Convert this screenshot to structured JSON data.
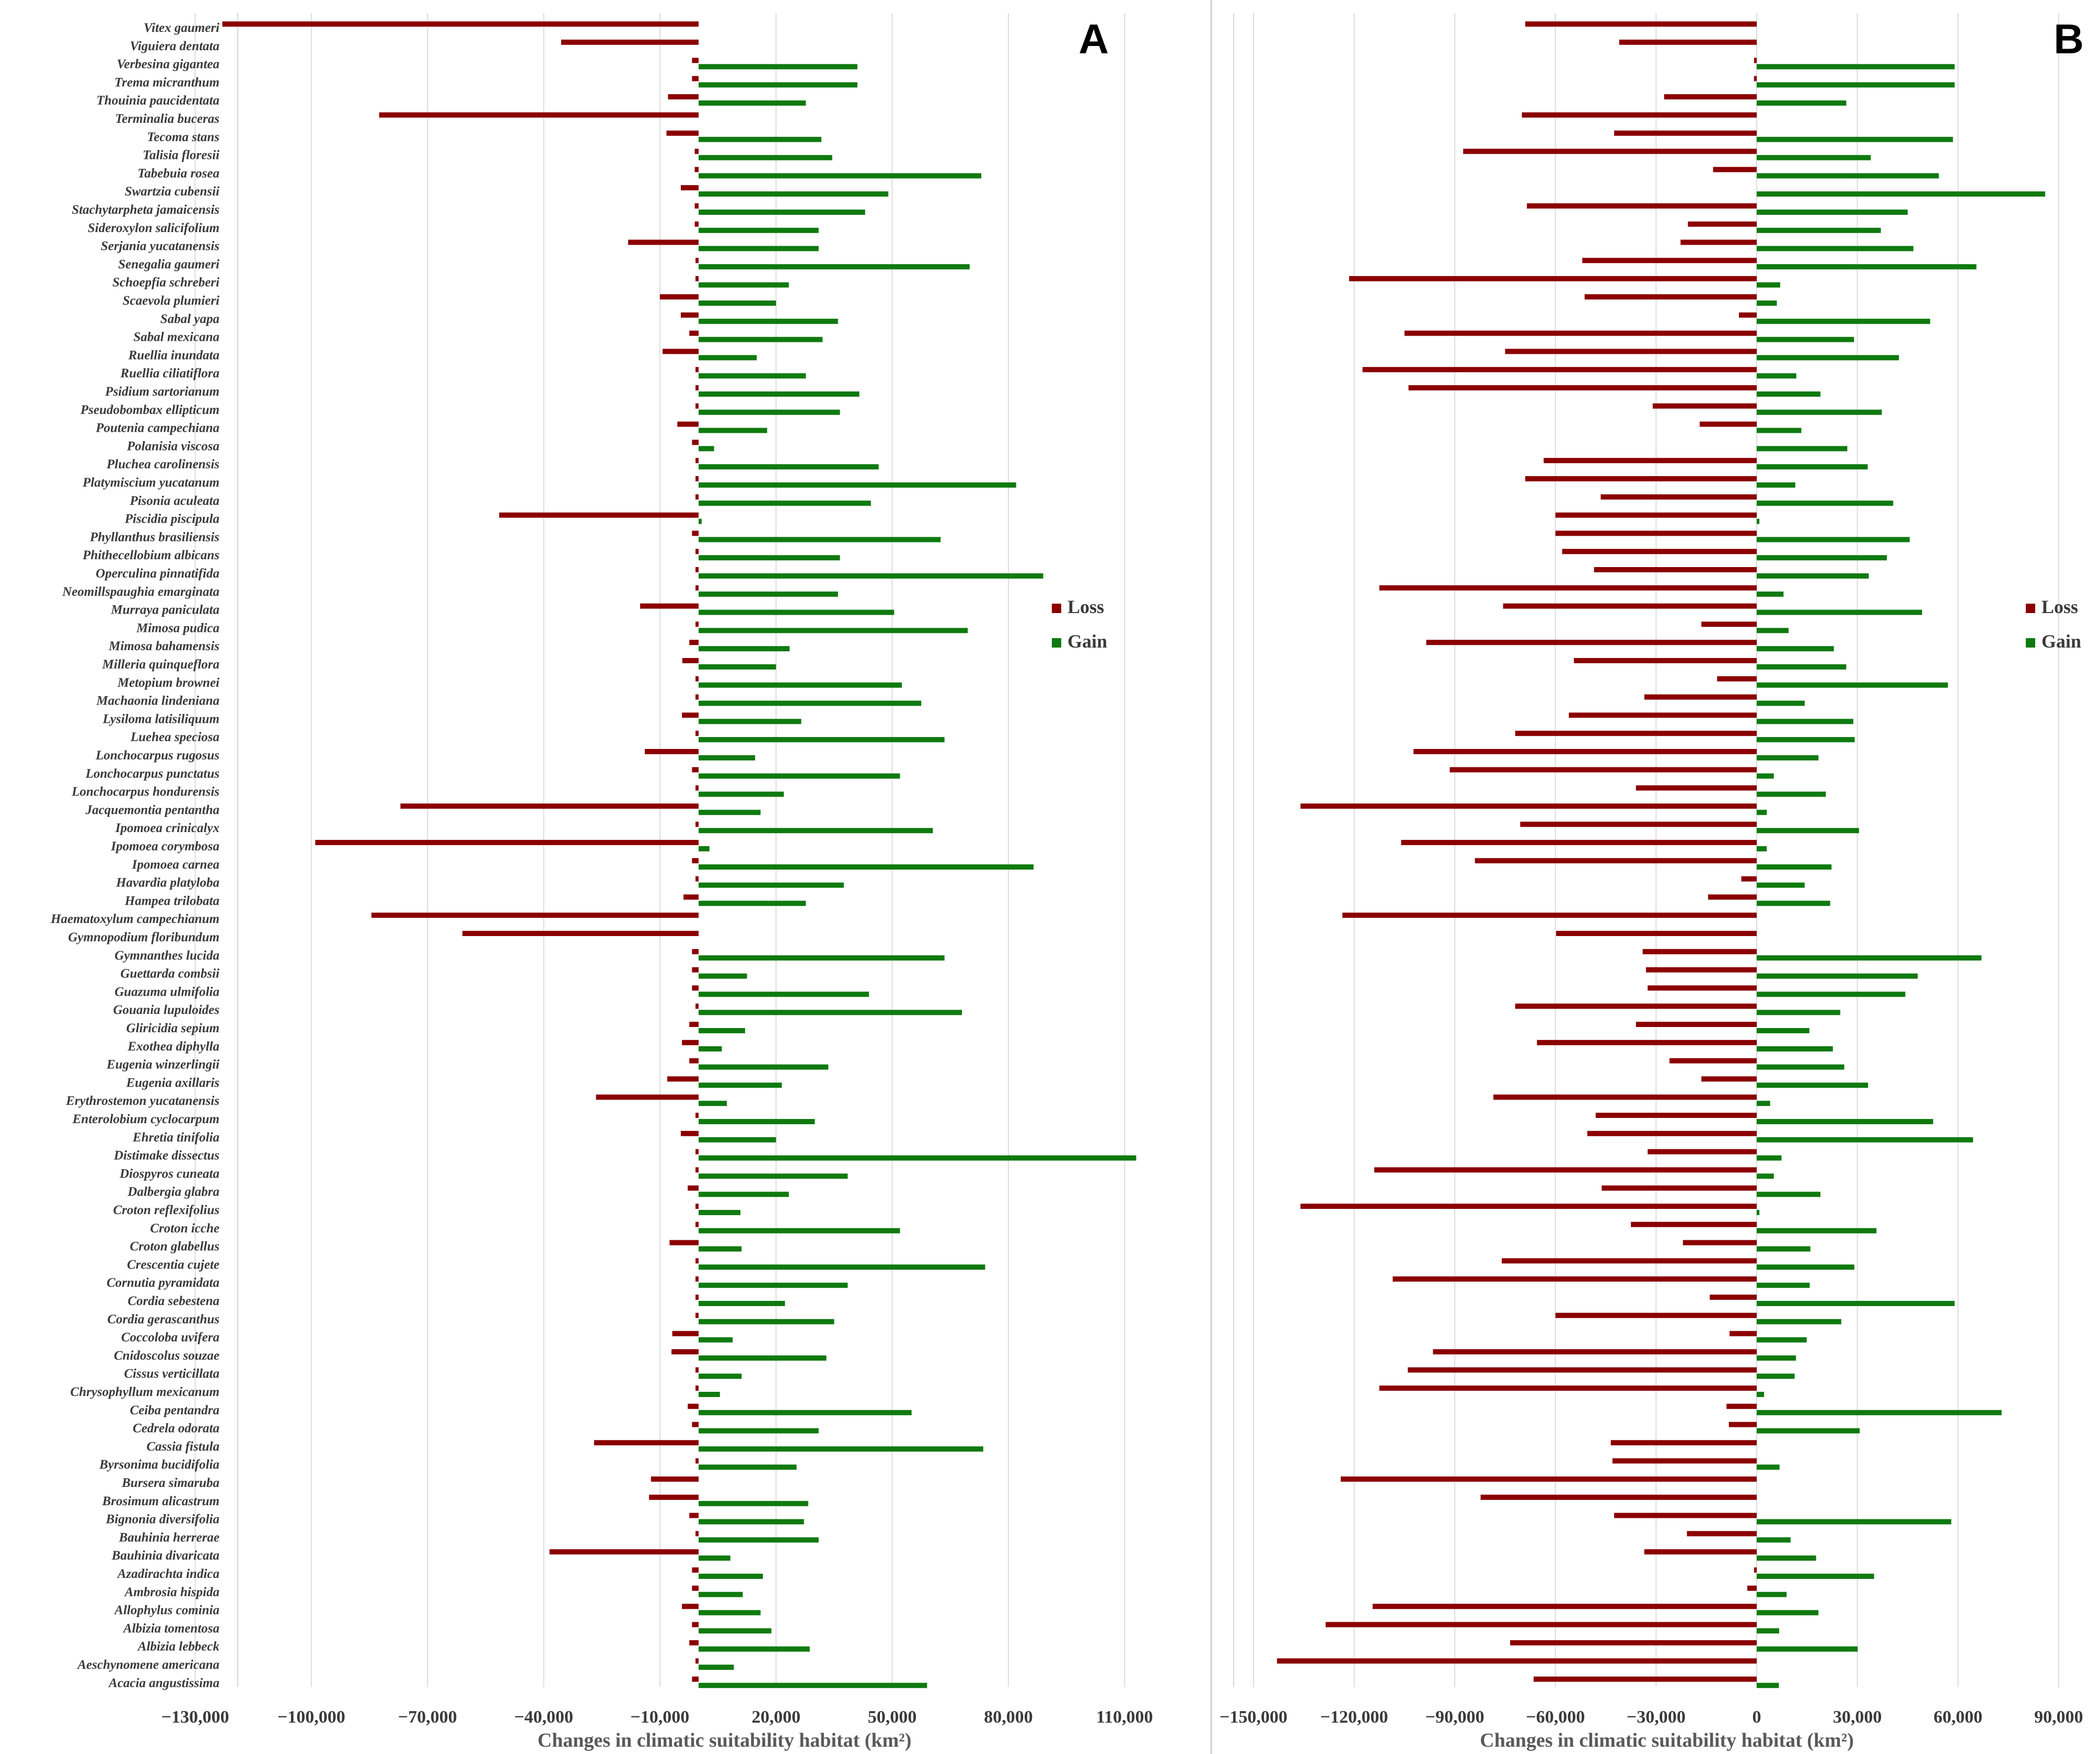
{
  "chart_data": [
    {
      "type": "bar",
      "panel_label": "A",
      "orientation": "horizontal",
      "xlabel": "Changes in climatic suitability habitat (km²)",
      "xlim": [
        -145000,
        125000
      ],
      "xticks": [
        -130000,
        -100000,
        -70000,
        -40000,
        -10000,
        20000,
        50000,
        80000,
        110000
      ],
      "xtick_labels": [
        "−130,000",
        "−100,000",
        "−70,000",
        "−40,000",
        "−10,000",
        "20,000",
        "50,000",
        "80,000",
        "110,000"
      ],
      "grid": "vertical",
      "legend": {
        "position": "right",
        "entries": [
          "Loss",
          "Gain"
        ]
      },
      "colors": {
        "Loss": "#8b0000",
        "Gain": "#0f7a0f"
      },
      "categories": [
        "Vitex gaumeri",
        "Viguiera dentata",
        "Verbesina gigantea",
        "Trema micranthum",
        "Thouinia paucidentata",
        "Terminalia buceras",
        "Tecoma stans",
        "Talisia floresii",
        "Tabebuia rosea",
        "Swartzia cubensii",
        "Stachytarpheta jamaicensis",
        "Sideroxylon salicifolium",
        "Serjania yucatanensis",
        "Senegalia gaumeri",
        "Schoepfia schreberi",
        "Scaevola plumieri",
        "Sabal yapa",
        "Sabal mexicana",
        "Ruellia inundata",
        "Ruellia ciliatiflora",
        "Psidium sartorianum",
        "Pseudobombax ellipticum",
        "Poutenia campechiana",
        "Polanisia viscosa",
        "Pluchea carolinensis",
        "Platymiscium yucatanum",
        "Pisonia aculeata",
        "Piscidia piscipula",
        "Phyllanthus brasiliensis",
        "Phithecellobium albicans",
        "Operculina pinnatifida",
        "Neomillspaughia emarginata",
        "Murraya paniculata",
        "Mimosa pudica",
        "Mimosa bahamensis",
        "Milleria quinqueflora",
        "Metopium brownei",
        "Machaonia lindeniana",
        "Lysiloma latisiliquum",
        "Luehea speciosa",
        "Lonchocarpus rugosus",
        "Lonchocarpus punctatus",
        "Lonchocarpus hondurensis",
        "Jacquemontia pentantha",
        "Ipomoea crinicalyx",
        "Ipomoea corymbosa",
        "Ipomoea carnea",
        "Havardia platyloba",
        "Hampea trilobata",
        "Haematoxylum campechianum",
        "Gymnopodium floribundum",
        "Gymnanthes lucida",
        "Guettarda combsii",
        "Guazuma ulmifolia",
        "Gouania lupuloides",
        "Gliricidia sepium",
        "Exothea diphylla",
        "Eugenia winzerlingii",
        "Eugenia axillaris",
        "Erythrostemon yucatanensis",
        "Enterolobium cyclocarpum",
        "Ehretia tinifolia",
        "Distimake dissectus",
        "Diospyros cuneata",
        "Dalbergia glabra",
        "Croton reflexifolius",
        "Croton icche",
        "Croton glabellus",
        "Crescentia cujete",
        "Cornutia pyramidata",
        "Cordia sebestena",
        "Cordia gerascanthus",
        "Coccoloba uvifera",
        "Cnidoscolus souzae",
        "Cissus verticillata",
        "Chrysophyllum mexicanum",
        "Ceiba pentandra",
        "Cedrela odorata",
        "Cassia fistula",
        "Byrsonima bucidifolia",
        "Bursera simaruba",
        "Brosimum alicastrum",
        "Bignonia diversifolia",
        "Bauhinia herrerae",
        "Bauhinia divaricata",
        "Azadirachta indica",
        "Ambrosia hispida",
        "Allophylus cominia",
        "Albizia tomentosa",
        "Albizia lebbeck",
        "Aeschynomene americana",
        "Acacia angustissima"
      ],
      "series": [
        {
          "name": "Loss",
          "values": [
            -123000,
            -35500,
            -1700,
            -1700,
            -7900,
            -82500,
            -8300,
            -1000,
            -1000,
            -4600,
            -1000,
            -1000,
            -18200,
            -800,
            -800,
            -10000,
            -4600,
            -2400,
            -9300,
            -800,
            -800,
            -800,
            -5500,
            -1700,
            -800,
            -800,
            -800,
            -51500,
            -1700,
            -800,
            -800,
            -800,
            -15100,
            -800,
            -2400,
            -4200,
            -800,
            -800,
            -4300,
            -800,
            -13900,
            -1700,
            -800,
            -77000,
            -800,
            -99000,
            -1700,
            -800,
            -3900,
            -84500,
            -61000,
            -1700,
            -1700,
            -1700,
            -800,
            -2400,
            -4300,
            -2400,
            -8100,
            -26500,
            -800,
            -4600,
            -800,
            -800,
            -2800,
            -800,
            -800,
            -7500,
            -800,
            -800,
            -800,
            -800,
            -6800,
            -7000,
            -800,
            -800,
            -2800,
            -1700,
            -27000,
            -800,
            -12300,
            -12800,
            -2400,
            -800,
            -38500,
            -1700,
            -1700,
            -4300,
            -1700,
            -2400,
            -800,
            -1700
          ]
        },
        {
          "name": "Gain",
          "values": [
            0,
            0,
            41000,
            41000,
            27700,
            0,
            31700,
            34500,
            73000,
            49000,
            43000,
            31000,
            31000,
            70000,
            23300,
            20000,
            36000,
            32000,
            15000,
            27700,
            41500,
            36500,
            17700,
            4000,
            46500,
            82000,
            44500,
            800,
            62500,
            36500,
            89000,
            36000,
            50500,
            69500,
            23500,
            20000,
            52500,
            57500,
            26500,
            63500,
            14600,
            52000,
            22000,
            16000,
            60500,
            2800,
            86500,
            37500,
            27700,
            0,
            0,
            63500,
            12500,
            44000,
            68000,
            12000,
            6000,
            33500,
            21500,
            7300,
            30000,
            20000,
            113000,
            38500,
            23300,
            10800,
            52000,
            11100,
            74000,
            38500,
            22300,
            35000,
            8800,
            33000,
            11100,
            5500,
            55000,
            31000,
            73500,
            25300,
            0,
            28300,
            27200,
            31000,
            8200,
            16600,
            11400,
            16000,
            18800,
            28700,
            9100,
            59000
          ]
        }
      ]
    },
    {
      "type": "bar",
      "panel_label": "B",
      "orientation": "horizontal",
      "xlabel": "Changes in climatic suitability habitat (km²)",
      "xlim": [
        -160000,
        97000
      ],
      "xticks": [
        -150000,
        -120000,
        -90000,
        -60000,
        -30000,
        0,
        30000,
        60000,
        90000
      ],
      "xtick_labels": [
        "−150,000",
        "−120,000",
        "−90,000",
        "−60,000",
        "−30,000",
        "0",
        "30,000",
        "60,000",
        "90,000"
      ],
      "grid": "vertical",
      "legend": {
        "position": "right",
        "entries": [
          "Loss",
          "Gain"
        ]
      },
      "colors": {
        "Loss": "#8b0000",
        "Gain": "#0f7a0f"
      },
      "categories": [
        "Vitex gaumeri",
        "Viguiera dentata",
        "Verbesina gigantea",
        "Trema micranthum",
        "Thouinia paucidentata",
        "Terminalia buceras",
        "Tecoma stans",
        "Talisia floresii",
        "Tabebuia rosea",
        "Swartzia cubensii",
        "Stachytarpheta jamaicensis",
        "Sideroxylon salicifolium",
        "Serjania yucatanensis",
        "Senegalia gaumeri",
        "Schoepfia schreberi",
        "Scaevola plumieri",
        "Sabal yapa",
        "Sabal mexicana",
        "Ruellia inundata",
        "Ruellia ciliatiflora",
        "Psidium sartorianum",
        "Pseudobombax ellipticum",
        "Poutenia campechiana",
        "Polanisia viscosa",
        "Pluchea carolinensis",
        "Platymiscium yucatanum",
        "Pisonia aculeata",
        "Piscidia piscipula",
        "Phyllanthus brasiliensis",
        "Phithecellobium albicans",
        "Operculina pinnatifida",
        "Neomillspaughia emarginata",
        "Murraya paniculata",
        "Mimosa pudica",
        "Mimosa bahamensis",
        "Milleria quinqueflora",
        "Metopium brownei",
        "Machaonia lindeniana",
        "Lysiloma latisiliquum",
        "Luehea speciosa",
        "Lonchocarpus rugosus",
        "Lonchocarpus punctatus",
        "Lonchocarpus hondurensis",
        "Jacquemontia pentantha",
        "Ipomoea crinicalyx",
        "Ipomoea corymbosa",
        "Ipomoea carnea",
        "Havardia platyloba",
        "Hampea trilobata",
        "Haematoxylum campechianum",
        "Gymnopodium floribundum",
        "Gymnanthes lucida",
        "Guettarda combsii",
        "Guazuma ulmifolia",
        "Gouania lupuloides",
        "Gliricidia sepium",
        "Exothea diphylla",
        "Eugenia winzerlingii",
        "Eugenia axillaris",
        "Erythrostemon yucatanensis",
        "Enterolobium cyclocarpum",
        "Ehretia tinifolia",
        "Distimake dissectus",
        "Diospyros cuneata",
        "Dalbergia glabra",
        "Croton reflexifolius",
        "Croton icche",
        "Croton glabellus",
        "Crescentia cujete",
        "Cornutia pyramidata",
        "Cordia sebestena",
        "Cordia gerascanthus",
        "Coccoloba uvifera",
        "Cnidoscolus souzae",
        "Cissus verticillata",
        "Chrysophyllum mexicanum",
        "Ceiba pentandra",
        "Cedrela odorata",
        "Cassia fistula",
        "Byrsonima bucidifolia",
        "Bursera simaruba",
        "Brosimum alicastrum",
        "Bignonia diversifolia",
        "Bauhinia herrerae",
        "Bauhinia divaricata",
        "Azadirachta indica",
        "Ambrosia hispida",
        "Allophylus cominia",
        "Albizia tomentosa",
        "Albizia lebbeck",
        "Aeschynomene americana",
        "Acacia angustissima"
      ],
      "series": [
        {
          "name": "Loss",
          "values": [
            -69000,
            -41000,
            -800,
            -800,
            -27600,
            -70000,
            -42500,
            -87500,
            -13000,
            0,
            -68500,
            -20500,
            -22700,
            -52000,
            -121500,
            -51300,
            -5300,
            -105000,
            -75000,
            -117500,
            -103800,
            -31000,
            -17000,
            0,
            -63500,
            -69000,
            -46500,
            -60000,
            -60000,
            -58000,
            -48500,
            -112500,
            -75600,
            -16500,
            -98500,
            -54500,
            -11800,
            -33500,
            -56000,
            -72000,
            -102300,
            -91500,
            -36000,
            -136000,
            -70500,
            -106000,
            -84000,
            -4600,
            -14500,
            -123500,
            -59800,
            -34000,
            -33000,
            -32500,
            -72000,
            -36000,
            -65500,
            -26000,
            -16500,
            -78500,
            -48000,
            -50500,
            -32500,
            -114000,
            -46200,
            -136000,
            -37500,
            -22000,
            -76000,
            -108500,
            -14000,
            -60000,
            -8100,
            -96500,
            -104000,
            -112500,
            -9000,
            -8300,
            -43500,
            -43000,
            -124000,
            -82300,
            -42500,
            -20800,
            -33500,
            -800,
            -2800,
            -114500,
            -128500,
            -73500,
            -143000,
            -66500
          ]
        },
        {
          "name": "Gain",
          "values": [
            0,
            0,
            59000,
            59000,
            26700,
            0,
            58500,
            34000,
            54300,
            86000,
            45000,
            37000,
            46700,
            65500,
            7000,
            6000,
            51700,
            29000,
            42400,
            11800,
            19000,
            37300,
            13300,
            27000,
            33100,
            11500,
            40700,
            800,
            45600,
            38800,
            33400,
            8000,
            49300,
            9500,
            23000,
            26700,
            57000,
            14300,
            28800,
            29200,
            18400,
            5100,
            20600,
            3000,
            30500,
            3000,
            22300,
            14300,
            21900,
            0,
            0,
            67000,
            48000,
            44300,
            24900,
            15700,
            22700,
            26100,
            33200,
            4000,
            52600,
            64500,
            7400,
            5100,
            19000,
            800,
            35700,
            16000,
            29100,
            15800,
            59000,
            25200,
            14900,
            11700,
            11300,
            2200,
            73000,
            30700,
            0,
            6800,
            0,
            0,
            58000,
            10100,
            17700,
            35000,
            8900,
            18400,
            6700,
            30100,
            0,
            6600
          ]
        }
      ]
    }
  ]
}
